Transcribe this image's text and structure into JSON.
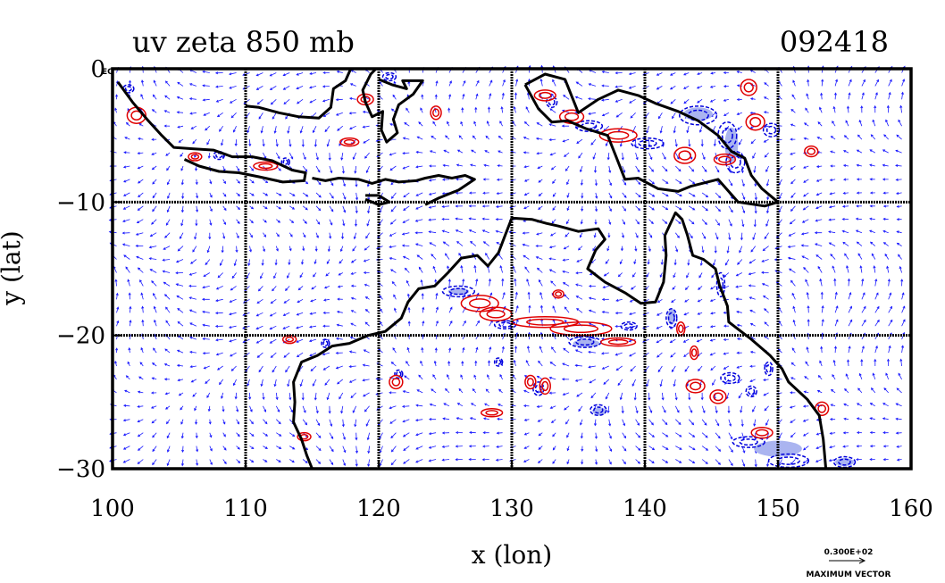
{
  "chart_data": {
    "type": "vector-contour-map",
    "title": "uv zeta 850 mb",
    "time_label": "092418",
    "xlabel": "x (lon)",
    "ylabel": "y (lat)",
    "xlim": [
      100,
      160
    ],
    "ylim": [
      -30,
      0
    ],
    "x_ticks": [
      100,
      110,
      120,
      130,
      140,
      150,
      160
    ],
    "y_ticks": [
      0,
      -10,
      -20,
      -30
    ],
    "x_tick_labels": [
      "100",
      "110",
      "120",
      "130",
      "140",
      "150",
      "160"
    ],
    "y_tick_labels": [
      "0",
      "−10",
      "−20",
      "−30"
    ],
    "corner_label": "EQ",
    "grid": true,
    "vector_legend": {
      "value": "0.300E+02",
      "label": "MAXIMUM VECTOR"
    },
    "colors": {
      "vectors": "#1a1aff",
      "positive_contour": "#e00000",
      "negative_contour": "#0000dd",
      "negative_fill": "#aab4f0",
      "coastline": "#000000"
    },
    "coastlines": [
      [
        [
          100.4,
          -1.0
        ],
        [
          101.5,
          -2.5
        ],
        [
          102.6,
          -3.8
        ],
        [
          103.7,
          -5.0
        ],
        [
          104.6,
          -5.9
        ],
        [
          106.0,
          -6.0
        ],
        [
          107.6,
          -6.1
        ],
        [
          109.0,
          -6.6
        ],
        [
          110.5,
          -6.6
        ],
        [
          112.0,
          -6.9
        ],
        [
          113.5,
          -7.6
        ],
        [
          114.5,
          -7.8
        ],
        [
          114.4,
          -8.4
        ],
        [
          112.8,
          -8.5
        ],
        [
          111.0,
          -8.1
        ],
        [
          109.5,
          -7.8
        ],
        [
          108.0,
          -7.7
        ],
        [
          106.5,
          -7.3
        ],
        [
          105.4,
          -6.8
        ]
      ],
      [
        [
          110.0,
          -2.8
        ],
        [
          111.0,
          -2.9
        ],
        [
          112.5,
          -3.3
        ],
        [
          114.0,
          -3.6
        ],
        [
          115.5,
          -3.7
        ],
        [
          116.4,
          -2.9
        ],
        [
          116.6,
          -1.5
        ],
        [
          117.5,
          -0.9
        ],
        [
          117.9,
          0.0
        ]
      ],
      [
        [
          120.0,
          -0.8
        ],
        [
          121.0,
          -1.2
        ],
        [
          122.1,
          -1.5
        ],
        [
          121.8,
          -0.9
        ],
        [
          123.3,
          -0.9
        ],
        [
          122.6,
          -1.9
        ],
        [
          121.5,
          -2.7
        ],
        [
          121.1,
          -3.8
        ],
        [
          121.4,
          -4.8
        ],
        [
          120.6,
          -5.5
        ],
        [
          120.2,
          -4.6
        ],
        [
          120.3,
          -3.2
        ],
        [
          119.5,
          -3.6
        ],
        [
          119.0,
          -2.5
        ],
        [
          118.8,
          -1.6
        ],
        [
          119.4,
          -0.4
        ],
        [
          119.8,
          0.0
        ]
      ],
      [
        [
          115.0,
          -8.2
        ],
        [
          116.0,
          -8.4
        ],
        [
          117.0,
          -8.2
        ],
        [
          118.5,
          -8.3
        ],
        [
          119.5,
          -8.6
        ],
        [
          120.5,
          -8.3
        ],
        [
          121.5,
          -8.5
        ],
        [
          122.8,
          -8.4
        ],
        [
          123.5,
          -8.2
        ],
        [
          124.5,
          -8.0
        ],
        [
          125.5,
          -8.2
        ],
        [
          126.5,
          -8.0
        ],
        [
          127.2,
          -8.3
        ],
        [
          126.0,
          -9.1
        ],
        [
          124.5,
          -9.7
        ],
        [
          123.5,
          -10.2
        ]
      ],
      [
        [
          119.0,
          -9.5
        ],
        [
          120.0,
          -9.5
        ],
        [
          120.8,
          -10.0
        ],
        [
          120.0,
          -10.2
        ],
        [
          119.0,
          -9.8
        ]
      ],
      [
        [
          131.0,
          -1.2
        ],
        [
          132.5,
          -0.4
        ],
        [
          134.0,
          -0.8
        ],
        [
          135.0,
          -3.3
        ],
        [
          136.5,
          -2.3
        ],
        [
          138.0,
          -1.6
        ],
        [
          139.5,
          -2.0
        ],
        [
          140.8,
          -2.6
        ],
        [
          142.5,
          -3.2
        ],
        [
          144.0,
          -3.9
        ],
        [
          145.5,
          -5.0
        ],
        [
          146.5,
          -6.2
        ],
        [
          147.5,
          -6.7
        ],
        [
          148.0,
          -8.0
        ],
        [
          148.8,
          -9.0
        ],
        [
          150.0,
          -10.0
        ],
        [
          149.0,
          -10.3
        ],
        [
          147.0,
          -10.0
        ],
        [
          145.5,
          -8.3
        ],
        [
          143.5,
          -8.8
        ],
        [
          142.5,
          -9.2
        ],
        [
          141.0,
          -9.0
        ],
        [
          139.5,
          -8.2
        ],
        [
          138.5,
          -8.3
        ],
        [
          137.8,
          -6.5
        ],
        [
          137.2,
          -5.0
        ],
        [
          135.6,
          -4.5
        ],
        [
          134.2,
          -3.9
        ],
        [
          133.0,
          -4.0
        ],
        [
          132.0,
          -3.0
        ],
        [
          131.0,
          -1.2
        ]
      ],
      [
        [
          130.0,
          -11.2
        ],
        [
          131.5,
          -11.3
        ],
        [
          132.6,
          -11.6
        ],
        [
          133.5,
          -11.8
        ],
        [
          135.0,
          -12.2
        ],
        [
          136.5,
          -12.0
        ],
        [
          137.0,
          -12.8
        ],
        [
          136.3,
          -13.6
        ],
        [
          135.7,
          -15.0
        ],
        [
          137.0,
          -16.0
        ],
        [
          138.5,
          -16.8
        ],
        [
          139.7,
          -17.6
        ],
        [
          140.8,
          -17.5
        ],
        [
          141.4,
          -16.0
        ],
        [
          141.6,
          -14.0
        ],
        [
          141.5,
          -12.5
        ],
        [
          142.3,
          -10.8
        ],
        [
          142.8,
          -11.3
        ],
        [
          143.2,
          -12.5
        ],
        [
          143.6,
          -14.0
        ],
        [
          144.4,
          -14.3
        ],
        [
          145.3,
          -15.0
        ],
        [
          145.6,
          -16.2
        ],
        [
          146.2,
          -17.8
        ],
        [
          146.3,
          -19.0
        ],
        [
          148.0,
          -20.3
        ],
        [
          149.4,
          -21.5
        ],
        [
          150.3,
          -22.5
        ],
        [
          150.8,
          -23.5
        ],
        [
          152.2,
          -24.8
        ],
        [
          153.1,
          -26.0
        ],
        [
          153.4,
          -27.8
        ],
        [
          153.6,
          -30.0
        ]
      ],
      [
        [
          130.0,
          -11.2
        ],
        [
          129.5,
          -12.5
        ],
        [
          129.0,
          -13.8
        ],
        [
          128.2,
          -14.8
        ],
        [
          127.4,
          -14.0
        ],
        [
          126.2,
          -14.2
        ],
        [
          125.2,
          -15.3
        ],
        [
          124.2,
          -16.3
        ],
        [
          123.0,
          -16.5
        ],
        [
          122.2,
          -17.5
        ],
        [
          121.7,
          -18.7
        ],
        [
          120.5,
          -19.7
        ],
        [
          119.2,
          -20.0
        ],
        [
          117.8,
          -20.6
        ],
        [
          116.5,
          -20.8
        ],
        [
          115.4,
          -21.5
        ],
        [
          114.2,
          -22.0
        ],
        [
          113.6,
          -23.5
        ],
        [
          113.7,
          -25.0
        ],
        [
          113.6,
          -26.5
        ],
        [
          114.2,
          -27.8
        ],
        [
          114.6,
          -29.0
        ],
        [
          115.0,
          -30.0
        ]
      ]
    ],
    "positive_vorticity_contours": [
      {
        "lon": 101.8,
        "lat": -3.5,
        "w": 0.7,
        "h": 0.6
      },
      {
        "lon": 106.2,
        "lat": -6.6,
        "w": 0.5,
        "h": 0.3
      },
      {
        "lon": 111.5,
        "lat": -7.3,
        "w": 0.9,
        "h": 0.3
      },
      {
        "lon": 117.8,
        "lat": -5.5,
        "w": 0.7,
        "h": 0.3
      },
      {
        "lon": 119.0,
        "lat": -2.3,
        "w": 0.6,
        "h": 0.4
      },
      {
        "lon": 124.3,
        "lat": -3.3,
        "w": 0.4,
        "h": 0.5
      },
      {
        "lon": 132.5,
        "lat": -2.0,
        "w": 0.8,
        "h": 0.4
      },
      {
        "lon": 134.5,
        "lat": -3.6,
        "w": 0.9,
        "h": 0.5
      },
      {
        "lon": 138.0,
        "lat": -5.0,
        "w": 1.4,
        "h": 0.5
      },
      {
        "lon": 143.0,
        "lat": -6.5,
        "w": 0.8,
        "h": 0.6
      },
      {
        "lon": 146.0,
        "lat": -6.8,
        "w": 0.8,
        "h": 0.4
      },
      {
        "lon": 147.8,
        "lat": -1.4,
        "w": 0.6,
        "h": 0.6
      },
      {
        "lon": 148.3,
        "lat": -4.0,
        "w": 0.7,
        "h": 0.6
      },
      {
        "lon": 152.5,
        "lat": -6.2,
        "w": 0.5,
        "h": 0.4
      },
      {
        "lon": 127.6,
        "lat": -17.6,
        "w": 1.4,
        "h": 0.6
      },
      {
        "lon": 128.8,
        "lat": -18.4,
        "w": 1.2,
        "h": 0.5
      },
      {
        "lon": 132.5,
        "lat": -19.0,
        "w": 2.5,
        "h": 0.4
      },
      {
        "lon": 135.2,
        "lat": -19.5,
        "w": 2.3,
        "h": 0.5
      },
      {
        "lon": 138.0,
        "lat": -20.5,
        "w": 1.3,
        "h": 0.3
      },
      {
        "lon": 133.5,
        "lat": -16.9,
        "w": 0.4,
        "h": 0.3
      },
      {
        "lon": 113.3,
        "lat": -20.3,
        "w": 0.5,
        "h": 0.3
      },
      {
        "lon": 121.3,
        "lat": -23.5,
        "w": 0.5,
        "h": 0.5
      },
      {
        "lon": 131.4,
        "lat": -23.5,
        "w": 0.4,
        "h": 0.5
      },
      {
        "lon": 132.5,
        "lat": -23.8,
        "w": 0.4,
        "h": 0.6
      },
      {
        "lon": 143.8,
        "lat": -23.8,
        "w": 0.7,
        "h": 0.5
      },
      {
        "lon": 145.5,
        "lat": -24.6,
        "w": 0.6,
        "h": 0.5
      },
      {
        "lon": 153.3,
        "lat": -25.5,
        "w": 0.5,
        "h": 0.5
      },
      {
        "lon": 142.7,
        "lat": -19.5,
        "w": 0.3,
        "h": 0.5
      },
      {
        "lon": 128.5,
        "lat": -25.8,
        "w": 0.8,
        "h": 0.3
      },
      {
        "lon": 143.7,
        "lat": -21.3,
        "w": 0.3,
        "h": 0.5
      },
      {
        "lon": 148.8,
        "lat": -27.3,
        "w": 0.8,
        "h": 0.4
      },
      {
        "lon": 114.4,
        "lat": -27.6,
        "w": 0.5,
        "h": 0.3
      }
    ],
    "negative_vorticity_contours": [
      {
        "lon": 101.2,
        "lat": -1.5,
        "w": 0.4,
        "h": 0.3
      },
      {
        "lon": 108.0,
        "lat": -6.5,
        "w": 0.4,
        "h": 0.3
      },
      {
        "lon": 113.0,
        "lat": -7.0,
        "w": 0.3,
        "h": 0.3
      },
      {
        "lon": 120.8,
        "lat": -0.6,
        "w": 0.5,
        "h": 0.3
      },
      {
        "lon": 133.0,
        "lat": -2.5,
        "w": 0.4,
        "h": 0.4
      },
      {
        "lon": 135.8,
        "lat": -4.3,
        "w": 1.0,
        "h": 0.4
      },
      {
        "lon": 140.2,
        "lat": -5.6,
        "w": 1.2,
        "h": 0.4
      },
      {
        "lon": 144.0,
        "lat": -3.5,
        "w": 1.4,
        "h": 0.7
      },
      {
        "lon": 146.2,
        "lat": -5.0,
        "w": 0.7,
        "h": 1.0
      },
      {
        "lon": 146.8,
        "lat": -7.0,
        "w": 0.7,
        "h": 0.8
      },
      {
        "lon": 149.5,
        "lat": -4.6,
        "w": 0.6,
        "h": 0.5
      },
      {
        "lon": 126.0,
        "lat": -16.7,
        "w": 1.2,
        "h": 0.4
      },
      {
        "lon": 129.5,
        "lat": -19.2,
        "w": 0.8,
        "h": 0.3
      },
      {
        "lon": 135.5,
        "lat": -20.5,
        "w": 1.2,
        "h": 0.4
      },
      {
        "lon": 138.8,
        "lat": -19.3,
        "w": 0.6,
        "h": 0.3
      },
      {
        "lon": 142.0,
        "lat": -18.7,
        "w": 0.4,
        "h": 0.7
      },
      {
        "lon": 145.7,
        "lat": -16.2,
        "w": 0.3,
        "h": 0.9
      },
      {
        "lon": 146.4,
        "lat": -23.2,
        "w": 0.7,
        "h": 0.4
      },
      {
        "lon": 148.0,
        "lat": -24.2,
        "w": 0.4,
        "h": 0.4
      },
      {
        "lon": 149.3,
        "lat": -22.5,
        "w": 0.3,
        "h": 0.5
      },
      {
        "lon": 136.5,
        "lat": -25.6,
        "w": 0.6,
        "h": 0.4
      },
      {
        "lon": 132.0,
        "lat": -24.0,
        "w": 0.4,
        "h": 0.5
      },
      {
        "lon": 147.8,
        "lat": -28.0,
        "w": 1.2,
        "h": 0.4
      },
      {
        "lon": 150.8,
        "lat": -29.4,
        "w": 1.5,
        "h": 0.5
      },
      {
        "lon": 155.0,
        "lat": -29.5,
        "w": 0.8,
        "h": 0.4
      },
      {
        "lon": 129.0,
        "lat": -22.0,
        "w": 0.3,
        "h": 0.3
      },
      {
        "lon": 116.0,
        "lat": -20.6,
        "w": 0.3,
        "h": 0.3
      },
      {
        "lon": 121.5,
        "lat": -22.9,
        "w": 0.3,
        "h": 0.3
      }
    ],
    "negative_vorticity_filled": [
      {
        "lon": 144.0,
        "lat": -3.4,
        "w": 1.1,
        "h": 0.5
      },
      {
        "lon": 146.5,
        "lat": -5.7,
        "w": 0.5,
        "h": 1.3
      },
      {
        "lon": 135.6,
        "lat": -20.6,
        "w": 1.0,
        "h": 0.3
      },
      {
        "lon": 142.0,
        "lat": -18.6,
        "w": 0.3,
        "h": 0.6
      },
      {
        "lon": 150.0,
        "lat": -28.5,
        "w": 1.8,
        "h": 0.6
      },
      {
        "lon": 155.0,
        "lat": -29.5,
        "w": 0.7,
        "h": 0.3
      },
      {
        "lon": 136.6,
        "lat": -25.7,
        "w": 0.5,
        "h": 0.3
      },
      {
        "lon": 126.0,
        "lat": -16.7,
        "w": 0.8,
        "h": 0.25
      }
    ]
  }
}
